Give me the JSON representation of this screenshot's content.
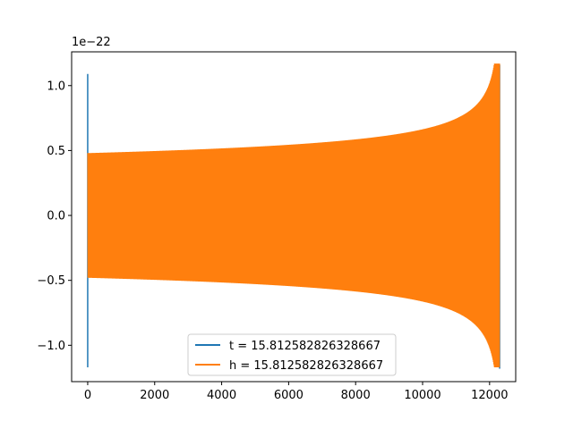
{
  "chart_data": {
    "type": "line",
    "title": "",
    "xlabel": "",
    "ylabel": "",
    "y_offset_label": "1e−22",
    "xlim": [
      -480,
      12780
    ],
    "ylim": [
      -1.28,
      1.26
    ],
    "x_ticks": [
      0,
      2000,
      4000,
      6000,
      8000,
      10000,
      12000
    ],
    "x_tick_labels": [
      "0",
      "2000",
      "4000",
      "6000",
      "8000",
      "10000",
      "12000"
    ],
    "y_ticks": [
      -1.0,
      -0.5,
      0.0,
      0.5,
      1.0
    ],
    "y_tick_labels": [
      "−1.0",
      "−0.5",
      "0.0",
      "0.5",
      "1.0"
    ],
    "grid": false,
    "legend_position": "lower-center",
    "series": [
      {
        "name": "t = 15.812582826328667",
        "color": "#1f77b4",
        "description_points": [
          {
            "x": 0,
            "y_min": -1.17,
            "y_max": 1.09
          },
          {
            "x": 12300,
            "y_min": -1.18,
            "y_max": 1.16
          }
        ]
      },
      {
        "name": "h = 15.812582826328667",
        "color": "#ff7f0e",
        "envelope": {
          "x_start": 0,
          "x_end": 12300,
          "amplitude_start": 0.48,
          "amplitude_end": 1.17,
          "cycles": 950
        }
      }
    ]
  }
}
